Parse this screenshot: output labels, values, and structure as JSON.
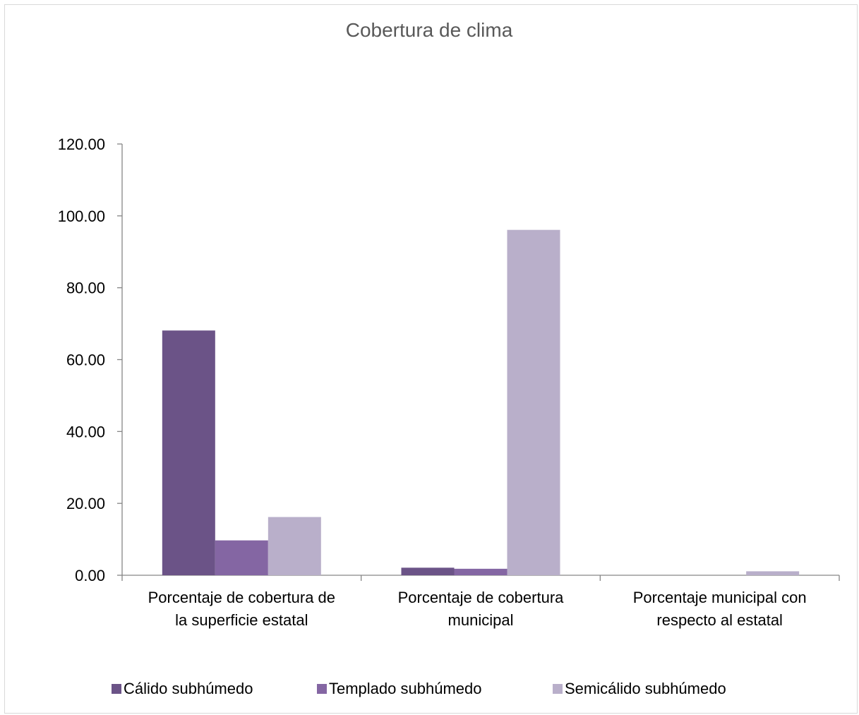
{
  "chart_data": {
    "type": "bar",
    "title": "Cobertura de clima",
    "categories": [
      [
        "Porcentaje de cobertura de",
        "la superficie estatal"
      ],
      [
        "Porcentaje de cobertura",
        "municipal"
      ],
      [
        "Porcentaje municipal con",
        "respecto al  estatal"
      ]
    ],
    "series": [
      {
        "name": "Cálido subhúmedo",
        "color": "#6b5387",
        "values": [
          68.1,
          2.1,
          0.0
        ]
      },
      {
        "name": "Templado subhúmedo",
        "color": "#8466a3",
        "values": [
          9.7,
          1.8,
          0.0
        ]
      },
      {
        "name": "Semicálido subhúmedo",
        "color": "#b9afca",
        "values": [
          16.2,
          96.1,
          1.1
        ]
      }
    ],
    "ylim": [
      0,
      120
    ],
    "yticks": [
      "0.00",
      "20.00",
      "40.00",
      "60.00",
      "80.00",
      "100.00",
      "120.00"
    ],
    "ytick_values": [
      0,
      20,
      40,
      60,
      80,
      100,
      120
    ],
    "grid": false,
    "legend_position": "bottom"
  }
}
